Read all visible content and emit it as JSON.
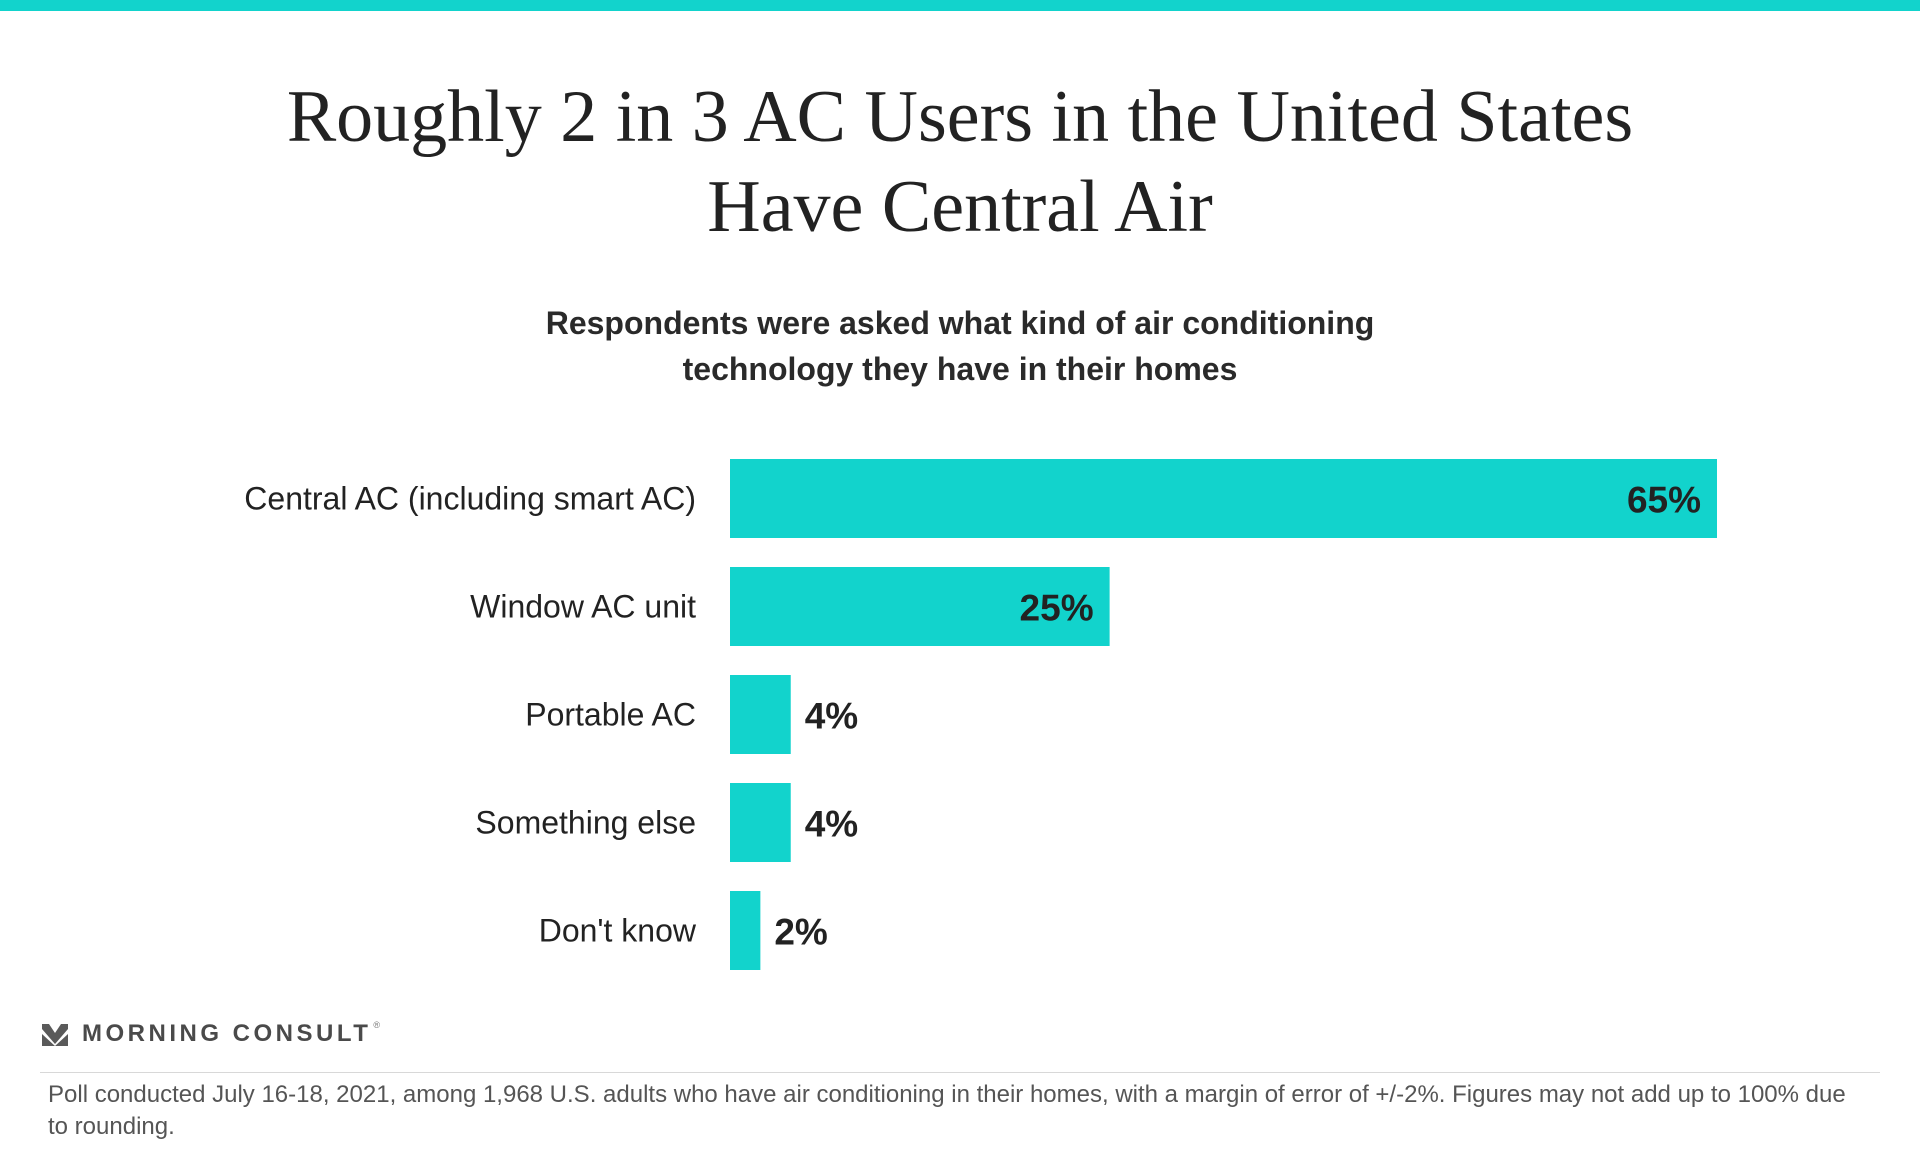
{
  "title": {
    "line1": "Roughly 2 in 3 AC Users in the United States",
    "line2": "Have Central Air"
  },
  "subtitle": {
    "line1": "Respondents were asked what kind of air conditioning",
    "line2": "technology they have in their homes"
  },
  "colors": {
    "accent": "#12d3cc",
    "text": "#222222"
  },
  "chart_data": {
    "type": "bar",
    "orientation": "horizontal",
    "categories": [
      "Central AC (including smart AC)",
      "Window AC unit",
      "Portable AC",
      "Something else",
      "Don't know"
    ],
    "values": [
      65,
      25,
      4,
      4,
      2
    ],
    "value_labels": [
      "65%",
      "25%",
      "4%",
      "4%",
      "2%"
    ],
    "xlim": [
      0,
      65
    ],
    "grid": false,
    "legend": "none"
  },
  "brand": {
    "name": "MORNING CONSULT",
    "reg": "®",
    "icon": "morning-consult-logo-icon"
  },
  "footnote": "Poll conducted July 16-18, 2021, among 1,968 U.S. adults who have air conditioning in their homes, with a margin of error of +/-2%. Figures may not add up to 100% due to rounding."
}
